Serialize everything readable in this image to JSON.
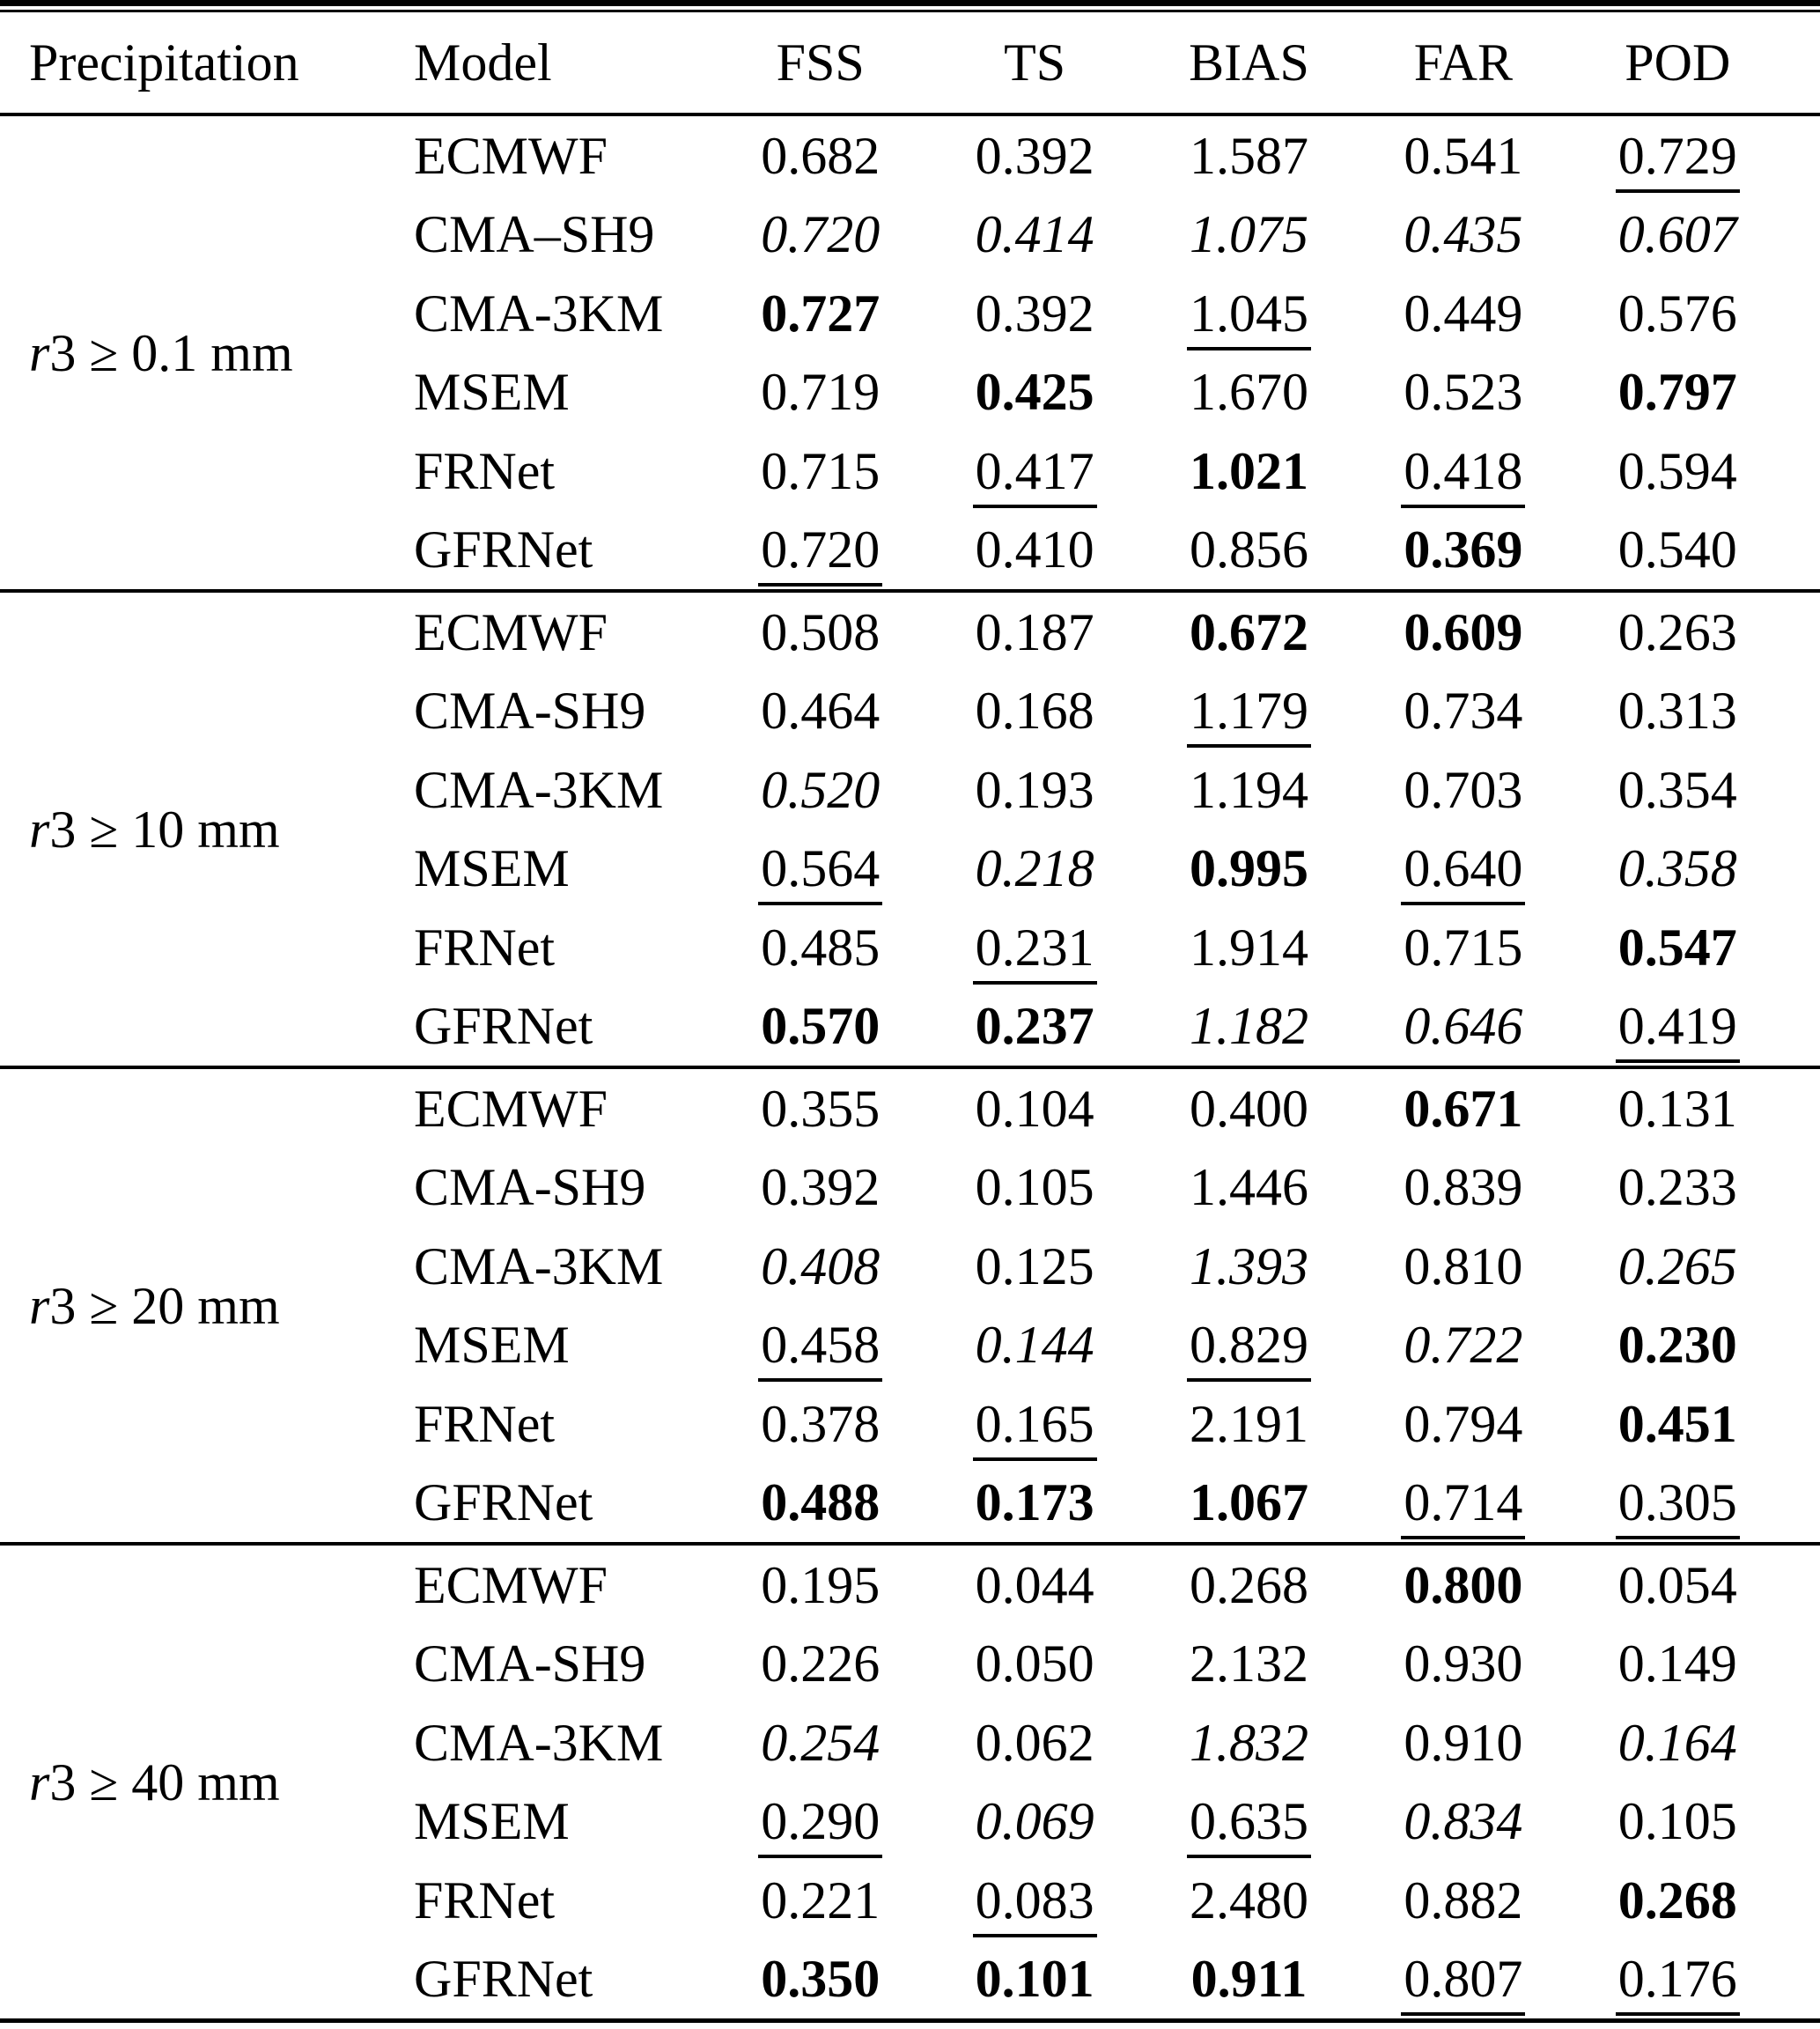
{
  "page": {
    "background": "#ffffff",
    "text_color": "#000000",
    "rule_color": "#000000"
  },
  "table": {
    "columns": [
      "Precipitation",
      "Model",
      "FSS",
      "TS",
      "BIAS",
      "FAR",
      "POD"
    ],
    "blocks": [
      {
        "threshold": {
          "italic": "r",
          "plain": "3 ≥ 0.1 mm"
        },
        "rows": [
          {
            "model": "ECMWF",
            "values": [
              "0.682",
              "0.392",
              "1.587",
              "0.541",
              "0.729"
            ],
            "styles": [
              "n",
              "n",
              "n",
              "n",
              "u"
            ]
          },
          {
            "model": "CMA–SH9",
            "values": [
              "0.720",
              "0.414",
              "1.075",
              "0.435",
              "0.607"
            ],
            "styles": [
              "i",
              "i",
              "i",
              "i",
              "i"
            ]
          },
          {
            "model": "CMA-3KM",
            "values": [
              "0.727",
              "0.392",
              "1.045",
              "0.449",
              "0.576"
            ],
            "styles": [
              "b",
              "n",
              "u",
              "n",
              "n"
            ]
          },
          {
            "model": "MSEM",
            "values": [
              "0.719",
              "0.425",
              "1.670",
              "0.523",
              "0.797"
            ],
            "styles": [
              "n",
              "b",
              "n",
              "n",
              "b"
            ]
          },
          {
            "model": "FRNet",
            "values": [
              "0.715",
              "0.417",
              "1.021",
              "0.418",
              "0.594"
            ],
            "styles": [
              "n",
              "u",
              "b",
              "u",
              "n"
            ]
          },
          {
            "model": "GFRNet",
            "values": [
              "0.720",
              "0.410",
              "0.856",
              "0.369",
              "0.540"
            ],
            "styles": [
              "u",
              "n",
              "n",
              "b",
              "n"
            ]
          }
        ]
      },
      {
        "threshold": {
          "italic": "r",
          "plain": "3 ≥ 10 mm"
        },
        "rows": [
          {
            "model": "ECMWF",
            "values": [
              "0.508",
              "0.187",
              "0.672",
              "0.609",
              "0.263"
            ],
            "styles": [
              "n",
              "n",
              "b",
              "b",
              "n"
            ]
          },
          {
            "model": "CMA-SH9",
            "values": [
              "0.464",
              "0.168",
              "1.179",
              "0.734",
              "0.313"
            ],
            "styles": [
              "n",
              "n",
              "u",
              "n",
              "n"
            ]
          },
          {
            "model": "CMA-3KM",
            "values": [
              "0.520",
              "0.193",
              "1.194",
              "0.703",
              "0.354"
            ],
            "styles": [
              "i",
              "n",
              "n",
              "n",
              "n"
            ]
          },
          {
            "model": "MSEM",
            "values": [
              "0.564",
              "0.218",
              "0.995",
              "0.640",
              "0.358"
            ],
            "styles": [
              "u",
              "i",
              "b",
              "u",
              "i"
            ]
          },
          {
            "model": "FRNet",
            "values": [
              "0.485",
              "0.231",
              "1.914",
              "0.715",
              "0.547"
            ],
            "styles": [
              "n",
              "u",
              "n",
              "n",
              "b"
            ]
          },
          {
            "model": "GFRNet",
            "values": [
              "0.570",
              "0.237",
              "1.182",
              "0.646",
              "0.419"
            ],
            "styles": [
              "b",
              "b",
              "i",
              "i",
              "u"
            ]
          }
        ]
      },
      {
        "threshold": {
          "italic": "r",
          "plain": "3 ≥ 20 mm"
        },
        "rows": [
          {
            "model": "ECMWF",
            "values": [
              "0.355",
              "0.104",
              "0.400",
              "0.671",
              "0.131"
            ],
            "styles": [
              "n",
              "n",
              "n",
              "b",
              "n"
            ]
          },
          {
            "model": "CMA-SH9",
            "values": [
              "0.392",
              "0.105",
              "1.446",
              "0.839",
              "0.233"
            ],
            "styles": [
              "n",
              "n",
              "n",
              "n",
              "n"
            ]
          },
          {
            "model": "CMA-3KM",
            "values": [
              "0.408",
              "0.125",
              "1.393",
              "0.810",
              "0.265"
            ],
            "styles": [
              "i",
              "n",
              "i",
              "n",
              "i"
            ]
          },
          {
            "model": "MSEM",
            "values": [
              "0.458",
              "0.144",
              "0.829",
              "0.722",
              "0.230"
            ],
            "styles": [
              "u",
              "i",
              "u",
              "i",
              "b"
            ]
          },
          {
            "model": "FRNet",
            "values": [
              "0.378",
              "0.165",
              "2.191",
              "0.794",
              "0.451"
            ],
            "styles": [
              "n",
              "u",
              "n",
              "n",
              "b"
            ]
          },
          {
            "model": "GFRNet",
            "values": [
              "0.488",
              "0.173",
              "1.067",
              "0.714",
              "0.305"
            ],
            "styles": [
              "b",
              "b",
              "b",
              "u",
              "u"
            ]
          }
        ]
      },
      {
        "threshold": {
          "italic": "r",
          "plain": "3 ≥ 40 mm"
        },
        "rows": [
          {
            "model": "ECMWF",
            "values": [
              "0.195",
              "0.044",
              "0.268",
              "0.800",
              "0.054"
            ],
            "styles": [
              "n",
              "n",
              "n",
              "b",
              "n"
            ]
          },
          {
            "model": "CMA-SH9",
            "values": [
              "0.226",
              "0.050",
              "2.132",
              "0.930",
              "0.149"
            ],
            "styles": [
              "n",
              "n",
              "n",
              "n",
              "n"
            ]
          },
          {
            "model": "CMA-3KM",
            "values": [
              "0.254",
              "0.062",
              "1.832",
              "0.910",
              "0.164"
            ],
            "styles": [
              "i",
              "n",
              "i",
              "n",
              "i"
            ]
          },
          {
            "model": "MSEM",
            "values": [
              "0.290",
              "0.069",
              "0.635",
              "0.834",
              "0.105"
            ],
            "styles": [
              "u",
              "i",
              "u",
              "i",
              "n"
            ]
          },
          {
            "model": "FRNet",
            "values": [
              "0.221",
              "0.083",
              "2.480",
              "0.882",
              "0.268"
            ],
            "styles": [
              "n",
              "u",
              "n",
              "n",
              "b"
            ]
          },
          {
            "model": "GFRNet",
            "values": [
              "0.350",
              "0.101",
              "0.911",
              "0.807",
              "0.176"
            ],
            "styles": [
              "b",
              "b",
              "b",
              "u",
              "u"
            ]
          }
        ]
      }
    ]
  }
}
